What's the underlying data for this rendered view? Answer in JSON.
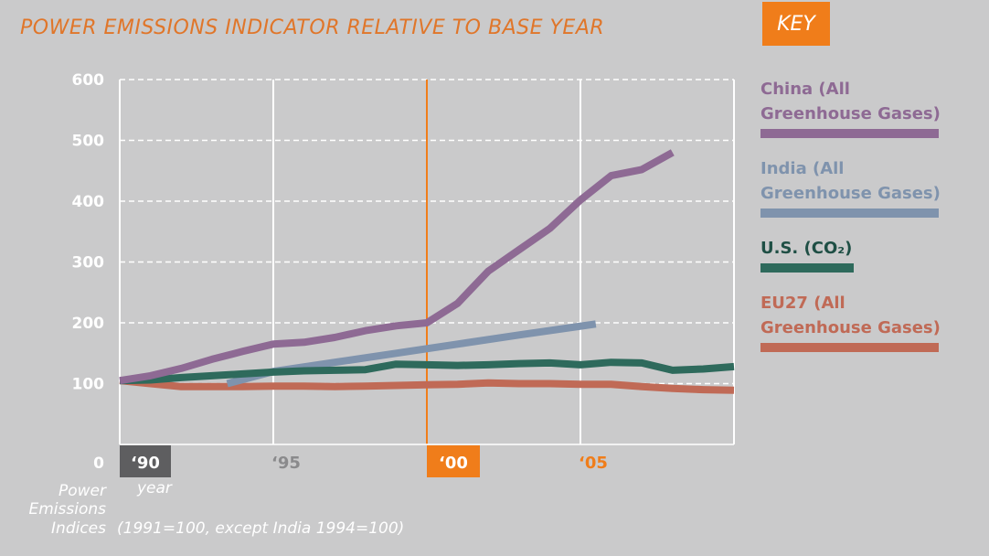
{
  "title": "POWER EMISSIONS INDICATOR RELATIVE TO BASE YEAR",
  "key_label": "KEY",
  "axis": {
    "xlabel": "year",
    "ylabel_line1": "Power",
    "ylabel_line2": "Emissions",
    "ylabel_line3": "Indices",
    "note": "(1991=100, except India 1994=100)"
  },
  "colors": {
    "background": "#cacacb",
    "accent": "#f07d1a",
    "china": "#8e6a94",
    "india": "#7f93ad",
    "us": "#2e6a5c",
    "eu27": "#c06a56"
  },
  "chart_data": {
    "type": "line",
    "title": "POWER EMISSIONS INDICATOR RELATIVE TO BASE YEAR",
    "xlabel": "year",
    "ylabel": "Power Emissions Indices",
    "xlim": [
      1991,
      2011
    ],
    "ylim": [
      0,
      600
    ],
    "yticks": [
      {
        "value": 0,
        "label": "0"
      },
      {
        "value": 100,
        "label": "100"
      },
      {
        "value": 200,
        "label": "200"
      },
      {
        "value": 300,
        "label": "300"
      },
      {
        "value": 400,
        "label": "400"
      },
      {
        "value": 500,
        "label": "500"
      },
      {
        "value": 600,
        "label": "600"
      }
    ],
    "xticks": [
      {
        "value": 1991,
        "label": "‘90",
        "style": "dark"
      },
      {
        "value": 1996,
        "label": "‘95",
        "style": "plain"
      },
      {
        "value": 2001,
        "label": "‘00",
        "style": "accent"
      },
      {
        "value": 2006,
        "label": "‘05",
        "style": "plain-accent"
      }
    ],
    "vertical_gridlines": [
      1991,
      1996,
      2006,
      2011
    ],
    "highlight_line": 2001,
    "series": [
      {
        "name": "China (All\nGreenhouse Gases)",
        "key": "china",
        "x": [
          1991,
          1992,
          1993,
          1994,
          1995,
          1996,
          1997,
          1998,
          1999,
          2000,
          2001,
          2002,
          2003,
          2004,
          2005,
          2006,
          2007,
          2008,
          2009
        ],
        "values": [
          105,
          113,
          125,
          140,
          153,
          165,
          168,
          176,
          187,
          195,
          200,
          232,
          285,
          320,
          355,
          402,
          442,
          452,
          480
        ]
      },
      {
        "name": "India (All\nGreenhouse Gases)",
        "key": "india",
        "x": [
          1994.5,
          1996,
          1998,
          2000,
          2002,
          2004,
          2006.5
        ],
        "values": [
          100,
          120,
          135,
          150,
          165,
          180,
          198
        ]
      },
      {
        "name": "U.S. (CO₂)",
        "key": "us",
        "x": [
          1991,
          1992,
          1993,
          1994,
          1995,
          1996,
          1997,
          1998,
          1999,
          2000,
          2001,
          2002,
          2003,
          2004,
          2005,
          2006,
          2007,
          2008,
          2009,
          2010,
          2011
        ],
        "values": [
          105,
          106,
          110,
          113,
          116,
          119,
          121,
          122,
          123,
          132,
          131,
          130,
          131,
          133,
          134,
          131,
          135,
          134,
          122,
          124,
          128
        ]
      },
      {
        "name": "EU27 (All\nGreenhouse Gases)",
        "key": "eu27",
        "x": [
          1991,
          1992,
          1993,
          1994,
          1995,
          1996,
          1997,
          1998,
          1999,
          2000,
          2001,
          2002,
          2003,
          2004,
          2005,
          2006,
          2007,
          2008,
          2009,
          2010,
          2011
        ],
        "values": [
          105,
          100,
          95,
          95,
          95,
          96,
          96,
          95,
          96,
          97,
          98,
          99,
          101,
          100,
          100,
          99,
          99,
          95,
          92,
          90,
          89
        ]
      }
    ]
  }
}
